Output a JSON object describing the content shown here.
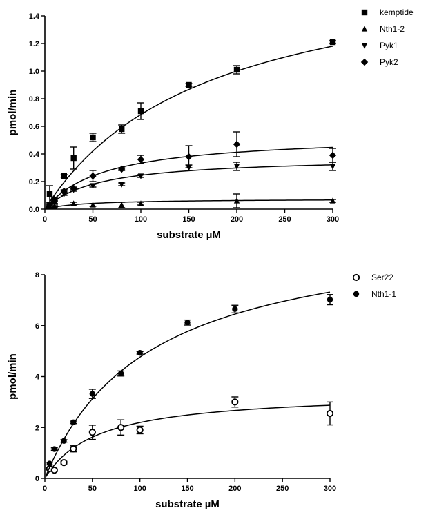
{
  "chart_data": [
    {
      "type": "scatter",
      "xlabel": "substrate µM",
      "ylabel": "pmol/min",
      "xlim": [
        0,
        300
      ],
      "ylim": [
        0,
        1.4
      ],
      "xticks": [
        0,
        50,
        100,
        150,
        200,
        250,
        300
      ],
      "yticks": [
        0.0,
        0.2,
        0.4,
        0.6,
        0.8,
        1.0,
        1.2,
        1.4
      ],
      "grid": false,
      "legend_position": "right",
      "fit": "michaelis-menten",
      "series": [
        {
          "name": "kemptide",
          "marker": "square",
          "vmax": 1.85,
          "km": 170,
          "points": [
            {
              "x": 5,
              "y": 0.11,
              "err": 0.06
            },
            {
              "x": 10,
              "y": 0.06,
              "err": 0.02
            },
            {
              "x": 20,
              "y": 0.24,
              "err": 0.01
            },
            {
              "x": 30,
              "y": 0.37,
              "err": 0.08
            },
            {
              "x": 50,
              "y": 0.52,
              "err": 0.03
            },
            {
              "x": 80,
              "y": 0.58,
              "err": 0.03
            },
            {
              "x": 100,
              "y": 0.71,
              "err": 0.06
            },
            {
              "x": 150,
              "y": 0.9,
              "err": 0.01
            },
            {
              "x": 200,
              "y": 1.01,
              "err": 0.03
            },
            {
              "x": 300,
              "y": 1.21,
              "err": 0.01
            }
          ]
        },
        {
          "name": "Nth1-2",
          "marker": "triangle-up",
          "vmax": 0.075,
          "km": 40,
          "points": [
            {
              "x": 5,
              "y": 0.02,
              "err": 0.01
            },
            {
              "x": 10,
              "y": 0.02,
              "err": 0.01
            },
            {
              "x": 30,
              "y": 0.04,
              "err": 0.01
            },
            {
              "x": 50,
              "y": 0.03,
              "err": 0.01
            },
            {
              "x": 80,
              "y": 0.03,
              "err": 0.02
            },
            {
              "x": 100,
              "y": 0.04,
              "err": 0.01
            },
            {
              "x": 200,
              "y": 0.06,
              "err": 0.05
            },
            {
              "x": 300,
              "y": 0.06,
              "err": 0.01
            }
          ]
        },
        {
          "name": "Pyk1",
          "marker": "triangle-down",
          "vmax": 0.38,
          "km": 55,
          "points": [
            {
              "x": 5,
              "y": 0.03,
              "err": 0.02
            },
            {
              "x": 10,
              "y": 0.05,
              "err": 0.01
            },
            {
              "x": 20,
              "y": 0.11,
              "err": 0.01
            },
            {
              "x": 30,
              "y": 0.14,
              "err": 0.01
            },
            {
              "x": 50,
              "y": 0.17,
              "err": 0.01
            },
            {
              "x": 80,
              "y": 0.18,
              "err": 0.01
            },
            {
              "x": 100,
              "y": 0.24,
              "err": 0.01
            },
            {
              "x": 150,
              "y": 0.3,
              "err": 0.02
            },
            {
              "x": 200,
              "y": 0.31,
              "err": 0.03
            },
            {
              "x": 300,
              "y": 0.31,
              "err": 0.03
            }
          ]
        },
        {
          "name": "Pyk2",
          "marker": "diamond",
          "vmax": 0.54,
          "km": 62,
          "points": [
            {
              "x": 5,
              "y": 0.03,
              "err": 0.01
            },
            {
              "x": 10,
              "y": 0.07,
              "err": 0.01
            },
            {
              "x": 20,
              "y": 0.13,
              "err": 0.01
            },
            {
              "x": 30,
              "y": 0.15,
              "err": 0.01
            },
            {
              "x": 50,
              "y": 0.24,
              "err": 0.04
            },
            {
              "x": 80,
              "y": 0.29,
              "err": 0.01
            },
            {
              "x": 100,
              "y": 0.36,
              "err": 0.03
            },
            {
              "x": 150,
              "y": 0.38,
              "err": 0.08
            },
            {
              "x": 200,
              "y": 0.47,
              "err": 0.09
            },
            {
              "x": 300,
              "y": 0.39,
              "err": 0.05
            }
          ]
        }
      ]
    },
    {
      "type": "scatter",
      "xlabel": "substrate µM",
      "ylabel": "pmol/min",
      "xlim": [
        0,
        300
      ],
      "ylim": [
        0,
        8
      ],
      "xticks": [
        0,
        50,
        100,
        150,
        200,
        250,
        300
      ],
      "yticks": [
        0,
        2,
        4,
        6,
        8
      ],
      "grid": false,
      "legend_position": "right",
      "fit": "michaelis-menten",
      "series": [
        {
          "name": "Ser22",
          "marker": "circle-open",
          "vmax": 3.4,
          "km": 55,
          "points": [
            {
              "x": 5,
              "y": 0.38,
              "err": 0.05
            },
            {
              "x": 10,
              "y": 0.32,
              "err": 0.05
            },
            {
              "x": 20,
              "y": 0.62,
              "err": 0.05
            },
            {
              "x": 30,
              "y": 1.16,
              "err": 0.12
            },
            {
              "x": 50,
              "y": 1.81,
              "err": 0.28
            },
            {
              "x": 80,
              "y": 2.0,
              "err": 0.3
            },
            {
              "x": 100,
              "y": 1.9,
              "err": 0.15
            },
            {
              "x": 200,
              "y": 3.0,
              "err": 0.2
            },
            {
              "x": 300,
              "y": 2.55,
              "err": 0.45
            }
          ]
        },
        {
          "name": "Nth1-1",
          "marker": "circle-filled",
          "vmax": 10.0,
          "km": 110,
          "points": [
            {
              "x": 5,
              "y": 0.58,
              "err": 0.05
            },
            {
              "x": 10,
              "y": 1.15,
              "err": 0.05
            },
            {
              "x": 20,
              "y": 1.47,
              "err": 0.05
            },
            {
              "x": 30,
              "y": 2.2,
              "err": 0.05
            },
            {
              "x": 50,
              "y": 3.32,
              "err": 0.18
            },
            {
              "x": 80,
              "y": 4.12,
              "err": 0.1
            },
            {
              "x": 100,
              "y": 4.93,
              "err": 0.05
            },
            {
              "x": 150,
              "y": 6.12,
              "err": 0.1
            },
            {
              "x": 200,
              "y": 6.65,
              "err": 0.15
            },
            {
              "x": 300,
              "y": 7.02,
              "err": 0.2
            }
          ]
        }
      ]
    }
  ]
}
